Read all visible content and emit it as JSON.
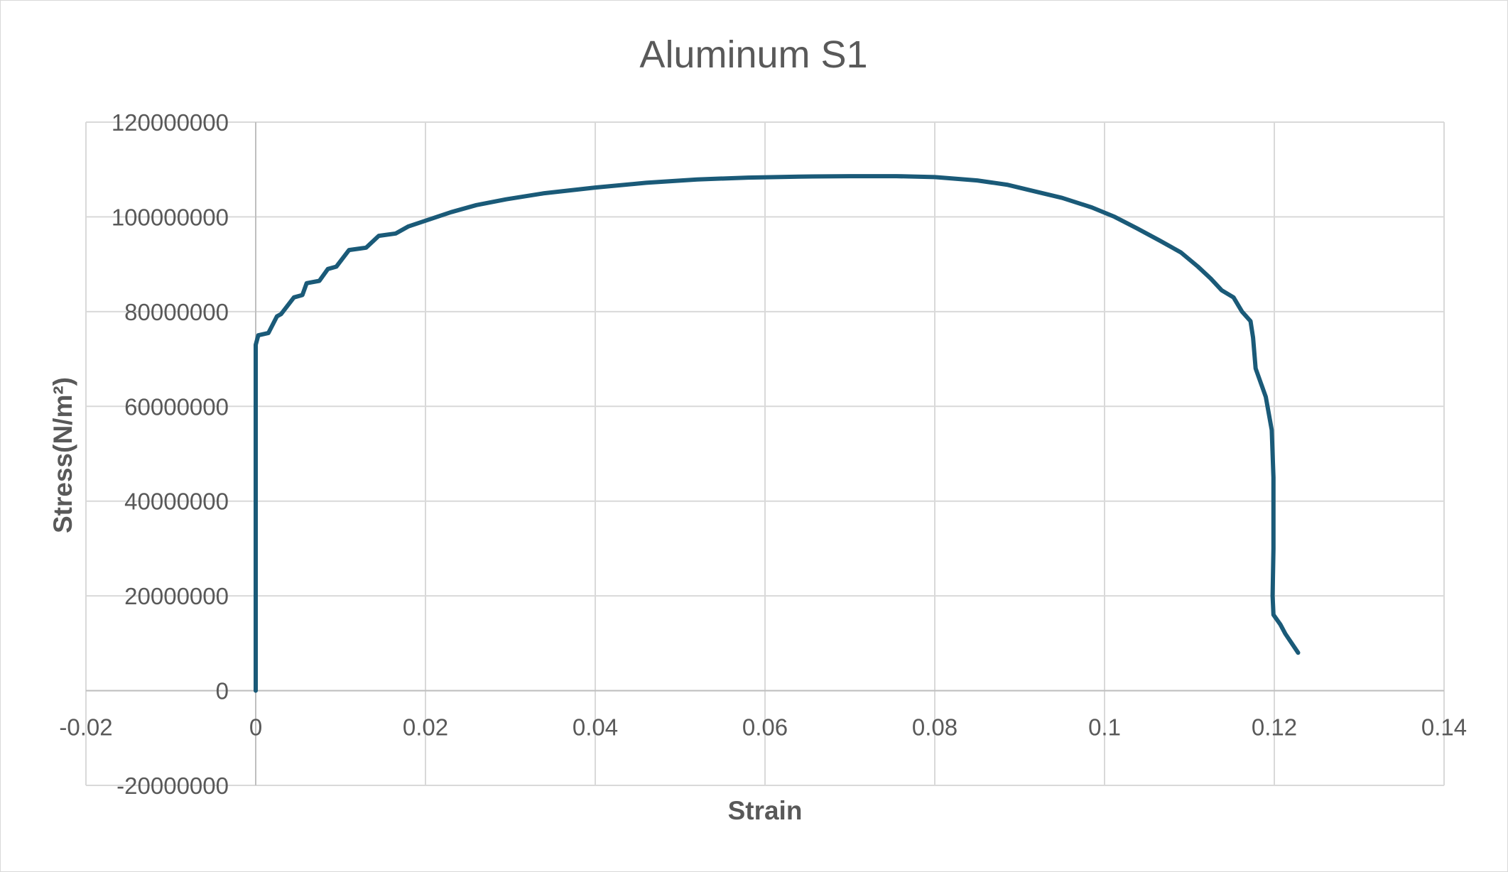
{
  "chart_data": {
    "type": "line",
    "title": "Aluminum S1",
    "xlabel": "Strain",
    "ylabel": "Stress(N/m²)",
    "xlim": [
      -0.02,
      0.14
    ],
    "ylim": [
      -20000000,
      120000000
    ],
    "x_ticks": [
      "-0.02",
      "0",
      "0.02",
      "0.04",
      "0.06",
      "0.08",
      "0.1",
      "0.12",
      "0.14"
    ],
    "y_ticks": [
      "-20000000",
      "0",
      "20000000",
      "40000000",
      "60000000",
      "80000000",
      "100000000",
      "120000000"
    ],
    "grid": true,
    "legend": "none",
    "colors": {
      "series": "#1a5a78",
      "grid": "#d9d9d9",
      "text": "#595959"
    },
    "series": [
      {
        "x": [
          0,
          0,
          0,
          0.0003,
          0.0015,
          0.0025,
          0.003,
          0.0045,
          0.0055,
          0.006,
          0.0075,
          0.0085,
          0.0095,
          0.011,
          0.013,
          0.0145,
          0.0165,
          0.018,
          0.0205,
          0.023,
          0.026,
          0.0295,
          0.034,
          0.04,
          0.046,
          0.052,
          0.058,
          0.064,
          0.07,
          0.0755,
          0.08,
          0.085,
          0.0885,
          0.0915,
          0.095,
          0.0985,
          0.1012,
          0.1038,
          0.1065,
          0.109,
          0.111,
          0.1125,
          0.1138,
          0.1152,
          0.1162,
          0.1172,
          0.1175,
          0.1178,
          0.119,
          0.1197,
          0.1199,
          0.1199,
          0.1198,
          0.1199,
          0.1207,
          0.1213,
          0.1228
        ],
        "y": [
          0,
          40000000,
          73000000,
          75000000,
          75500000,
          79000000,
          79500000,
          83000000,
          83500000,
          86000000,
          86500000,
          89000000,
          89500000,
          93000000,
          93500000,
          96000000,
          96500000,
          98000000,
          99500000,
          101000000,
          102500000,
          103700000,
          105000000,
          106200000,
          107200000,
          107900000,
          108300000,
          108500000,
          108600000,
          108600000,
          108400000,
          107700000,
          106800000,
          105500000,
          104000000,
          102000000,
          100000000,
          97600000,
          95000000,
          92500000,
          89500000,
          87000000,
          84500000,
          83000000,
          80000000,
          78000000,
          74500000,
          68000000,
          62000000,
          55000000,
          45000000,
          30000000,
          20000000,
          16000000,
          14000000,
          12000000,
          8000000
        ]
      }
    ]
  }
}
